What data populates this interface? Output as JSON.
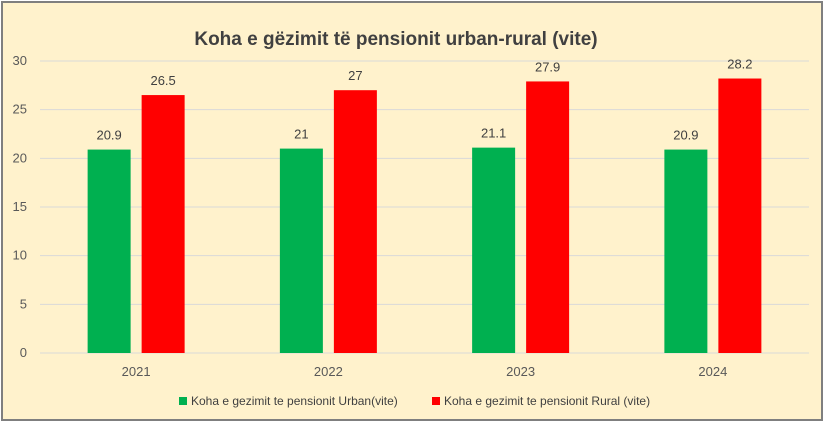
{
  "chart_data": {
    "type": "bar",
    "title": "Koha e gëzimit të pensionit urban-rural (vite)",
    "xlabel": "",
    "ylabel": "",
    "categories": [
      "2021",
      "2022",
      "2023",
      "2024"
    ],
    "series": [
      {
        "name": "Koha e gezimit te pensionit Urban(vite)",
        "color": "#00b050",
        "values": [
          20.9,
          21,
          21.1,
          20.9
        ],
        "labels": [
          "20.9",
          "21",
          "21.1",
          "20.9"
        ]
      },
      {
        "name": "Koha e gezimit te pensionit Rural (vite)",
        "color": "#ff0000",
        "values": [
          26.5,
          27,
          27.9,
          28.2
        ],
        "labels": [
          "26.5",
          "27",
          "27.9",
          "28.2"
        ]
      }
    ],
    "ylim": [
      0,
      30
    ],
    "yticks": [
      0,
      5,
      10,
      15,
      20,
      25,
      30
    ],
    "ytick_labels": [
      "0",
      "5",
      "10",
      "15",
      "20",
      "25",
      "30"
    ],
    "grid": true,
    "legend_position": "bottom",
    "colors": {
      "background": "#fff2cc",
      "grid": "#d9d9d9",
      "border": "#7f7f7f"
    }
  }
}
